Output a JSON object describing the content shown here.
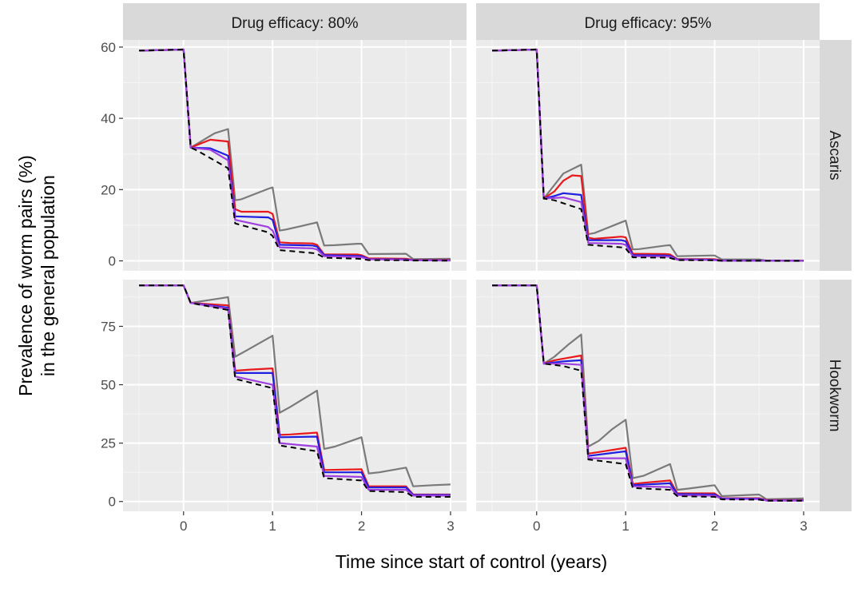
{
  "chart_data": {
    "type": "line",
    "xlabel": "Time since start of control (years)",
    "ylabel_lines": [
      "Prevalence of worm pairs (%)",
      "in the general population"
    ],
    "facet_columns": [
      "Drug efficacy: 80%",
      "Drug efficacy: 95%"
    ],
    "facet_rows": [
      "Ascaris",
      "Hookworm"
    ],
    "xlim": [
      -0.68,
      3.18
    ],
    "x_ticks": [
      0,
      1,
      2,
      3
    ],
    "rows": [
      {
        "name": "Ascaris",
        "ylim": [
          -2.8,
          62
        ],
        "y_ticks": [
          0,
          20,
          40,
          60
        ]
      },
      {
        "name": "Hookworm",
        "ylim": [
          -4.2,
          95
        ],
        "y_ticks": [
          0,
          25,
          50,
          75
        ]
      }
    ],
    "series_colors": {
      "gray": "#7a7a7a",
      "red": "#e8191c",
      "blue": "#1f1fe0",
      "purple": "#a040e0",
      "black_dashed": "#000000"
    },
    "panels": [
      {
        "column": "Drug efficacy: 80%",
        "row": "Ascaris",
        "series": [
          {
            "color": "gray",
            "x": [
              -0.5,
              0,
              0.08,
              0.35,
              0.5,
              0.58,
              0.65,
              0.95,
              1.0,
              1.08,
              1.15,
              1.45,
              1.5,
              1.58,
              1.7,
              1.95,
              2.0,
              2.08,
              2.5,
              2.58,
              3.0
            ],
            "y": [
              59,
              59.3,
              31.8,
              35.8,
              37,
              17,
              17.3,
              20.2,
              20.6,
              8.5,
              8.8,
              10.5,
              10.8,
              4.3,
              4.4,
              4.8,
              4.8,
              1.9,
              2,
              0.5,
              0.6
            ]
          },
          {
            "color": "red",
            "x": [
              -0.5,
              0,
              0.08,
              0.2,
              0.3,
              0.5,
              0.58,
              0.65,
              0.95,
              1.0,
              1.08,
              1.2,
              1.45,
              1.5,
              1.58,
              1.95,
              2.0,
              2.08,
              2.5,
              2.58,
              3.0
            ],
            "y": [
              59,
              59.3,
              31.8,
              33,
              34,
              33.5,
              14.5,
              13.8,
              13.8,
              13.2,
              5.2,
              5,
              4.9,
              4.5,
              1.8,
              1.8,
              1.6,
              0.7,
              0.6,
              0.3,
              0.25
            ]
          },
          {
            "color": "blue",
            "x": [
              -0.5,
              0,
              0.08,
              0.3,
              0.5,
              0.58,
              0.95,
              1.0,
              1.08,
              1.45,
              1.5,
              1.58,
              1.95,
              2.0,
              2.08,
              2.5,
              2.58,
              3.0
            ],
            "y": [
              59,
              59.3,
              31.8,
              31.6,
              29.5,
              12.5,
              12.2,
              11.5,
              4.5,
              4.3,
              4,
              1.6,
              1.4,
              1.3,
              0.5,
              0.4,
              0.2,
              0.15
            ]
          },
          {
            "color": "purple",
            "x": [
              -0.5,
              0,
              0.08,
              0.3,
              0.5,
              0.58,
              0.95,
              1.0,
              1.08,
              1.45,
              1.5,
              1.58,
              1.95,
              2.0,
              2.08,
              2.5,
              2.58,
              3.0
            ],
            "y": [
              59,
              59.3,
              31.8,
              31.2,
              28.2,
              11.5,
              9.5,
              8.5,
              3.8,
              3.5,
              3.2,
              1.3,
              1.1,
              1,
              0.4,
              0.3,
              0.15,
              0.1
            ]
          },
          {
            "color": "black_dashed",
            "dashed": true,
            "x": [
              -0.5,
              0,
              0.08,
              0.15,
              0.5,
              0.58,
              0.95,
              1.0,
              1.08,
              1.45,
              1.5,
              1.58,
              1.95,
              2.0,
              2.08,
              2.5,
              2.58,
              3.0
            ],
            "y": [
              59,
              59.3,
              31.8,
              31,
              26,
              10.5,
              8,
              7,
              3,
              2.2,
              2,
              0.9,
              0.6,
              0.5,
              0.2,
              0.15,
              0.1,
              0.05
            ]
          }
        ]
      },
      {
        "column": "Drug efficacy: 95%",
        "row": "Ascaris",
        "series": [
          {
            "color": "gray",
            "x": [
              -0.5,
              0,
              0.08,
              0.3,
              0.5,
              0.58,
              0.65,
              0.95,
              1.0,
              1.08,
              1.15,
              1.45,
              1.5,
              1.58,
              1.95,
              2.0,
              2.08,
              2.5,
              2.58,
              3.0
            ],
            "y": [
              59,
              59.3,
              17.5,
              24.5,
              27,
              7.5,
              7.8,
              10.8,
              11.3,
              3.2,
              3.3,
              4.3,
              4.4,
              1.3,
              1.5,
              1.5,
              0.4,
              0.4,
              0.1,
              0.1
            ]
          },
          {
            "color": "red",
            "x": [
              -0.5,
              0,
              0.08,
              0.2,
              0.3,
              0.4,
              0.5,
              0.58,
              0.65,
              0.95,
              1.0,
              1.08,
              1.45,
              1.5,
              1.58,
              1.95,
              2.0,
              2.08,
              2.5,
              2.58,
              3.0
            ],
            "y": [
              59,
              59.3,
              17.5,
              19.5,
              22.5,
              24,
              23.8,
              6.5,
              6.2,
              6.8,
              6.6,
              2,
              1.9,
              1.8,
              0.5,
              0.5,
              0.45,
              0.1,
              0.1,
              0.05,
              0.05
            ]
          },
          {
            "color": "blue",
            "x": [
              -0.5,
              0,
              0.08,
              0.2,
              0.3,
              0.5,
              0.58,
              0.95,
              1.0,
              1.08,
              1.45,
              1.5,
              1.58,
              1.95,
              2.0,
              2.08,
              2.5,
              2.58,
              3.0
            ],
            "y": [
              59,
              59.3,
              17.5,
              18.2,
              19,
              18.5,
              5.8,
              5.8,
              5.5,
              1.6,
              1.5,
              1.4,
              0.4,
              0.35,
              0.3,
              0.08,
              0.06,
              0.03,
              0.02
            ]
          },
          {
            "color": "purple",
            "x": [
              -0.5,
              0,
              0.08,
              0.3,
              0.5,
              0.58,
              0.95,
              1.0,
              1.08,
              1.45,
              1.5,
              1.58,
              1.95,
              2.0,
              2.08,
              2.5,
              2.58,
              3.0
            ],
            "y": [
              59,
              59.3,
              17.5,
              17.8,
              16.5,
              5,
              4.8,
              4.5,
              1.3,
              1.2,
              1.1,
              0.3,
              0.25,
              0.2,
              0.05,
              0.04,
              0.02,
              0.01
            ]
          },
          {
            "color": "black_dashed",
            "dashed": true,
            "x": [
              -0.5,
              0,
              0.08,
              0.2,
              0.5,
              0.58,
              0.95,
              1.0,
              1.08,
              1.45,
              1.5,
              1.58,
              1.95,
              2.0,
              2.08,
              2.5,
              2.58,
              3.0
            ],
            "y": [
              59,
              59.3,
              17.5,
              17,
              14.5,
              4.5,
              3.8,
              3.5,
              1,
              0.9,
              0.8,
              0.2,
              0.15,
              0.12,
              0.03,
              0.02,
              0.01,
              0.01
            ]
          }
        ]
      },
      {
        "column": "Drug efficacy: 80%",
        "row": "Hookworm",
        "series": [
          {
            "color": "gray",
            "x": [
              -0.5,
              0,
              0.08,
              0.5,
              0.58,
              0.7,
              1.0,
              1.08,
              1.2,
              1.5,
              1.58,
              1.7,
              2.0,
              2.08,
              2.2,
              2.5,
              2.58,
              2.8,
              3.0
            ],
            "y": [
              92.5,
              92.5,
              85,
              87.5,
              62,
              64.5,
              71,
              38,
              40.5,
              47.5,
              22.5,
              23.5,
              27.5,
              12,
              12.5,
              14.5,
              6.5,
              7,
              7.3
            ]
          },
          {
            "color": "red",
            "x": [
              -0.5,
              0,
              0.08,
              0.5,
              0.58,
              0.75,
              1.0,
              1.08,
              1.2,
              1.5,
              1.58,
              2.0,
              2.08,
              2.5,
              2.58,
              3.0
            ],
            "y": [
              92.5,
              92.5,
              85,
              84,
              56,
              56.5,
              57,
              28.5,
              28.7,
              29.5,
              13.5,
              13.8,
              6.5,
              6.5,
              3,
              3
            ]
          },
          {
            "color": "blue",
            "x": [
              -0.5,
              0,
              0.08,
              0.5,
              0.58,
              1.0,
              1.08,
              1.5,
              1.58,
              2.0,
              2.08,
              2.5,
              2.58,
              3.0
            ],
            "y": [
              92.5,
              92.5,
              85,
              83,
              55,
              55,
              27.5,
              27.8,
              12.5,
              12.5,
              6,
              6,
              2.8,
              2.8
            ]
          },
          {
            "color": "purple",
            "x": [
              -0.5,
              0,
              0.08,
              0.5,
              0.58,
              1.0,
              1.08,
              1.5,
              1.58,
              2.0,
              2.08,
              2.5,
              2.58,
              3.0
            ],
            "y": [
              92.5,
              92.5,
              85,
              82.5,
              53.5,
              50,
              25,
              23.5,
              11,
              10.5,
              5,
              5,
              2.5,
              2.5
            ]
          },
          {
            "color": "black_dashed",
            "dashed": true,
            "x": [
              -0.5,
              0,
              0.08,
              0.5,
              0.58,
              1.0,
              1.08,
              1.5,
              1.58,
              2.0,
              2.08,
              2.5,
              2.58,
              3.0
            ],
            "y": [
              92.5,
              92.5,
              85,
              82,
              52.5,
              48.5,
              24,
              21.5,
              10,
              9,
              4.5,
              4,
              2,
              2
            ]
          }
        ]
      },
      {
        "column": "Drug efficacy: 95%",
        "row": "Hookworm",
        "series": [
          {
            "color": "gray",
            "x": [
              -0.5,
              0,
              0.08,
              0.2,
              0.35,
              0.5,
              0.58,
              0.7,
              0.85,
              1.0,
              1.08,
              1.2,
              1.5,
              1.58,
              1.7,
              2.0,
              2.08,
              2.5,
              2.58,
              3.0
            ],
            "y": [
              92.5,
              92.5,
              59,
              62,
              67,
              71.5,
              23.5,
              26,
              31,
              35,
              10,
              11,
              16,
              5,
              5.5,
              7,
              2.3,
              3,
              1,
              1.3
            ]
          },
          {
            "color": "red",
            "x": [
              -0.5,
              0,
              0.08,
              0.2,
              0.35,
              0.5,
              0.58,
              0.75,
              1.0,
              1.08,
              1.2,
              1.5,
              1.58,
              2.0,
              2.08,
              2.5,
              2.58,
              3.0
            ],
            "y": [
              92.5,
              92.5,
              59,
              60.5,
              61.5,
              62.5,
              20.5,
              21.5,
              23,
              7.5,
              8,
              9,
              3.5,
              3.5,
              1.4,
              1.4,
              0.6,
              0.6
            ]
          },
          {
            "color": "blue",
            "x": [
              -0.5,
              0,
              0.08,
              0.3,
              0.5,
              0.58,
              1.0,
              1.08,
              1.5,
              1.58,
              2.0,
              2.08,
              2.5,
              2.58,
              3.0
            ],
            "y": [
              92.5,
              92.5,
              59,
              60,
              60.5,
              19.5,
              21.5,
              7,
              7.8,
              3.2,
              3,
              1.3,
              1.2,
              0.5,
              0.5
            ]
          },
          {
            "color": "purple",
            "x": [
              -0.5,
              0,
              0.08,
              0.3,
              0.5,
              0.58,
              1.0,
              1.08,
              1.5,
              1.58,
              2.0,
              2.08,
              2.5,
              2.58,
              3.0
            ],
            "y": [
              92.5,
              92.5,
              59,
              59,
              58.5,
              18.5,
              18.5,
              6.5,
              6.2,
              2.7,
              2.5,
              1.1,
              1,
              0.4,
              0.4
            ]
          },
          {
            "color": "black_dashed",
            "dashed": true,
            "x": [
              -0.5,
              0,
              0.08,
              0.3,
              0.5,
              0.58,
              1.0,
              1.08,
              1.5,
              1.58,
              2.0,
              2.08,
              2.5,
              2.58,
              3.0
            ],
            "y": [
              92.5,
              92.5,
              59,
              58,
              56,
              18,
              16,
              5.8,
              5,
              2.3,
              2,
              0.9,
              0.8,
              0.3,
              0.3
            ]
          }
        ]
      }
    ]
  }
}
